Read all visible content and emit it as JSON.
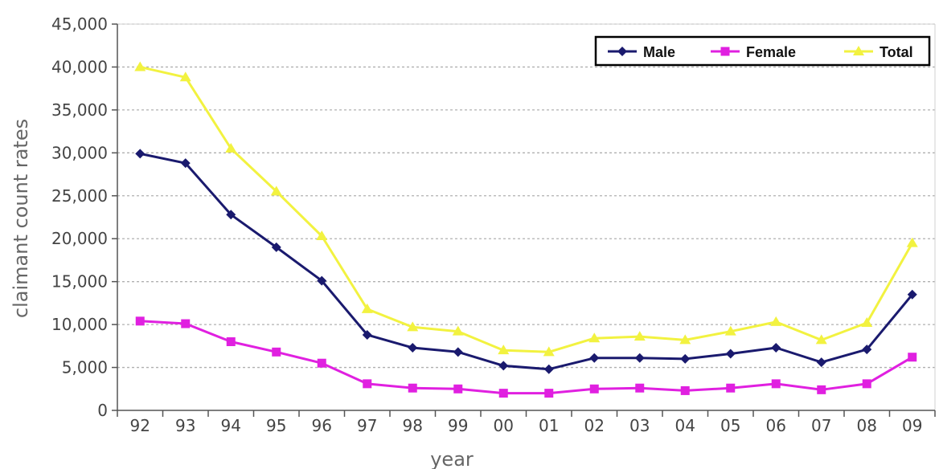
{
  "chart_data": {
    "type": "line",
    "xlabel": "year",
    "ylabel": "claimant count rates",
    "categories": [
      "92",
      "93",
      "94",
      "95",
      "96",
      "97",
      "98",
      "99",
      "00",
      "01",
      "02",
      "03",
      "04",
      "05",
      "06",
      "07",
      "08",
      "09"
    ],
    "ylim": [
      0,
      45000
    ],
    "yticks": [
      "0",
      "5,000",
      "10,000",
      "15,000",
      "20,000",
      "25,000",
      "30,000",
      "35,000",
      "40,000",
      "45,000"
    ],
    "grid": true,
    "legend": "top-right",
    "series": [
      {
        "name": "Male",
        "color": "#1a1a6e",
        "marker": "diamond",
        "values": [
          29900,
          28800,
          22800,
          19000,
          15100,
          8800,
          7300,
          6800,
          5200,
          4800,
          6100,
          6100,
          6000,
          6600,
          7300,
          5600,
          7100,
          13500
        ]
      },
      {
        "name": "Female",
        "color": "#e020e0",
        "marker": "square",
        "values": [
          10400,
          10100,
          8000,
          6800,
          5500,
          3100,
          2600,
          2500,
          2000,
          2000,
          2500,
          2600,
          2300,
          2600,
          3100,
          2400,
          3100,
          6200
        ]
      },
      {
        "name": "Total",
        "color": "#f2f240",
        "marker": "triangle",
        "values": [
          40000,
          38800,
          30500,
          25500,
          20300,
          11800,
          9700,
          9200,
          7000,
          6800,
          8400,
          8600,
          8200,
          9200,
          10300,
          8200,
          10200,
          19500
        ]
      }
    ]
  }
}
